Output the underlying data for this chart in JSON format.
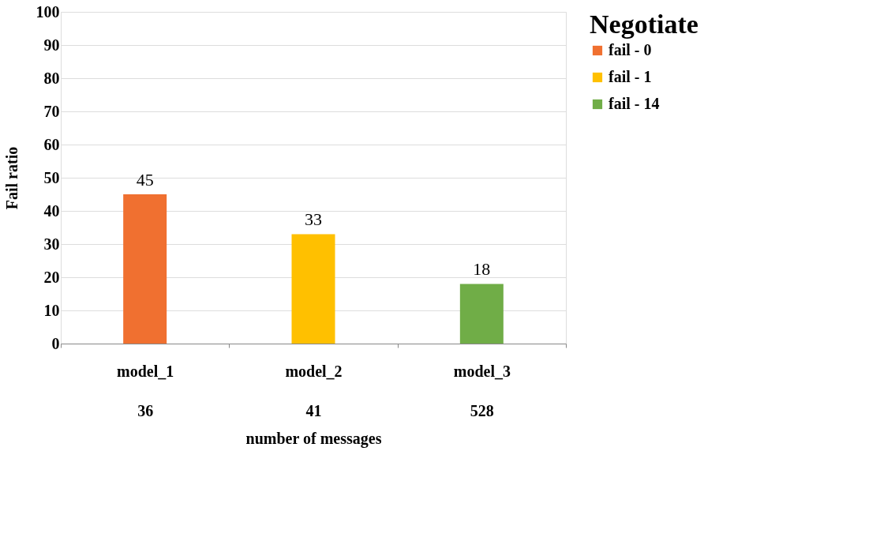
{
  "chart_data": {
    "type": "bar",
    "xlabel": "number of messages",
    "ylabel": "Fail ratio",
    "legend_title": "Negotiate",
    "categories": [
      "model_1\n36",
      "model_2\n41",
      "model_3\n528"
    ],
    "series": [
      {
        "name": "fail - 0",
        "color": "#f07030",
        "values": [
          45,
          null,
          null
        ]
      },
      {
        "name": "fail - 1",
        "color": "#ffc000",
        "values": [
          null,
          33,
          null
        ]
      },
      {
        "name": "fail - 14",
        "color": "#70ad47",
        "values": [
          null,
          null,
          18
        ]
      }
    ],
    "ylim": [
      0,
      100
    ],
    "yticks": [
      0,
      10,
      20,
      30,
      40,
      50,
      60,
      70,
      80,
      90,
      100
    ],
    "grid": "y",
    "legend": "right",
    "data_labels": true
  }
}
